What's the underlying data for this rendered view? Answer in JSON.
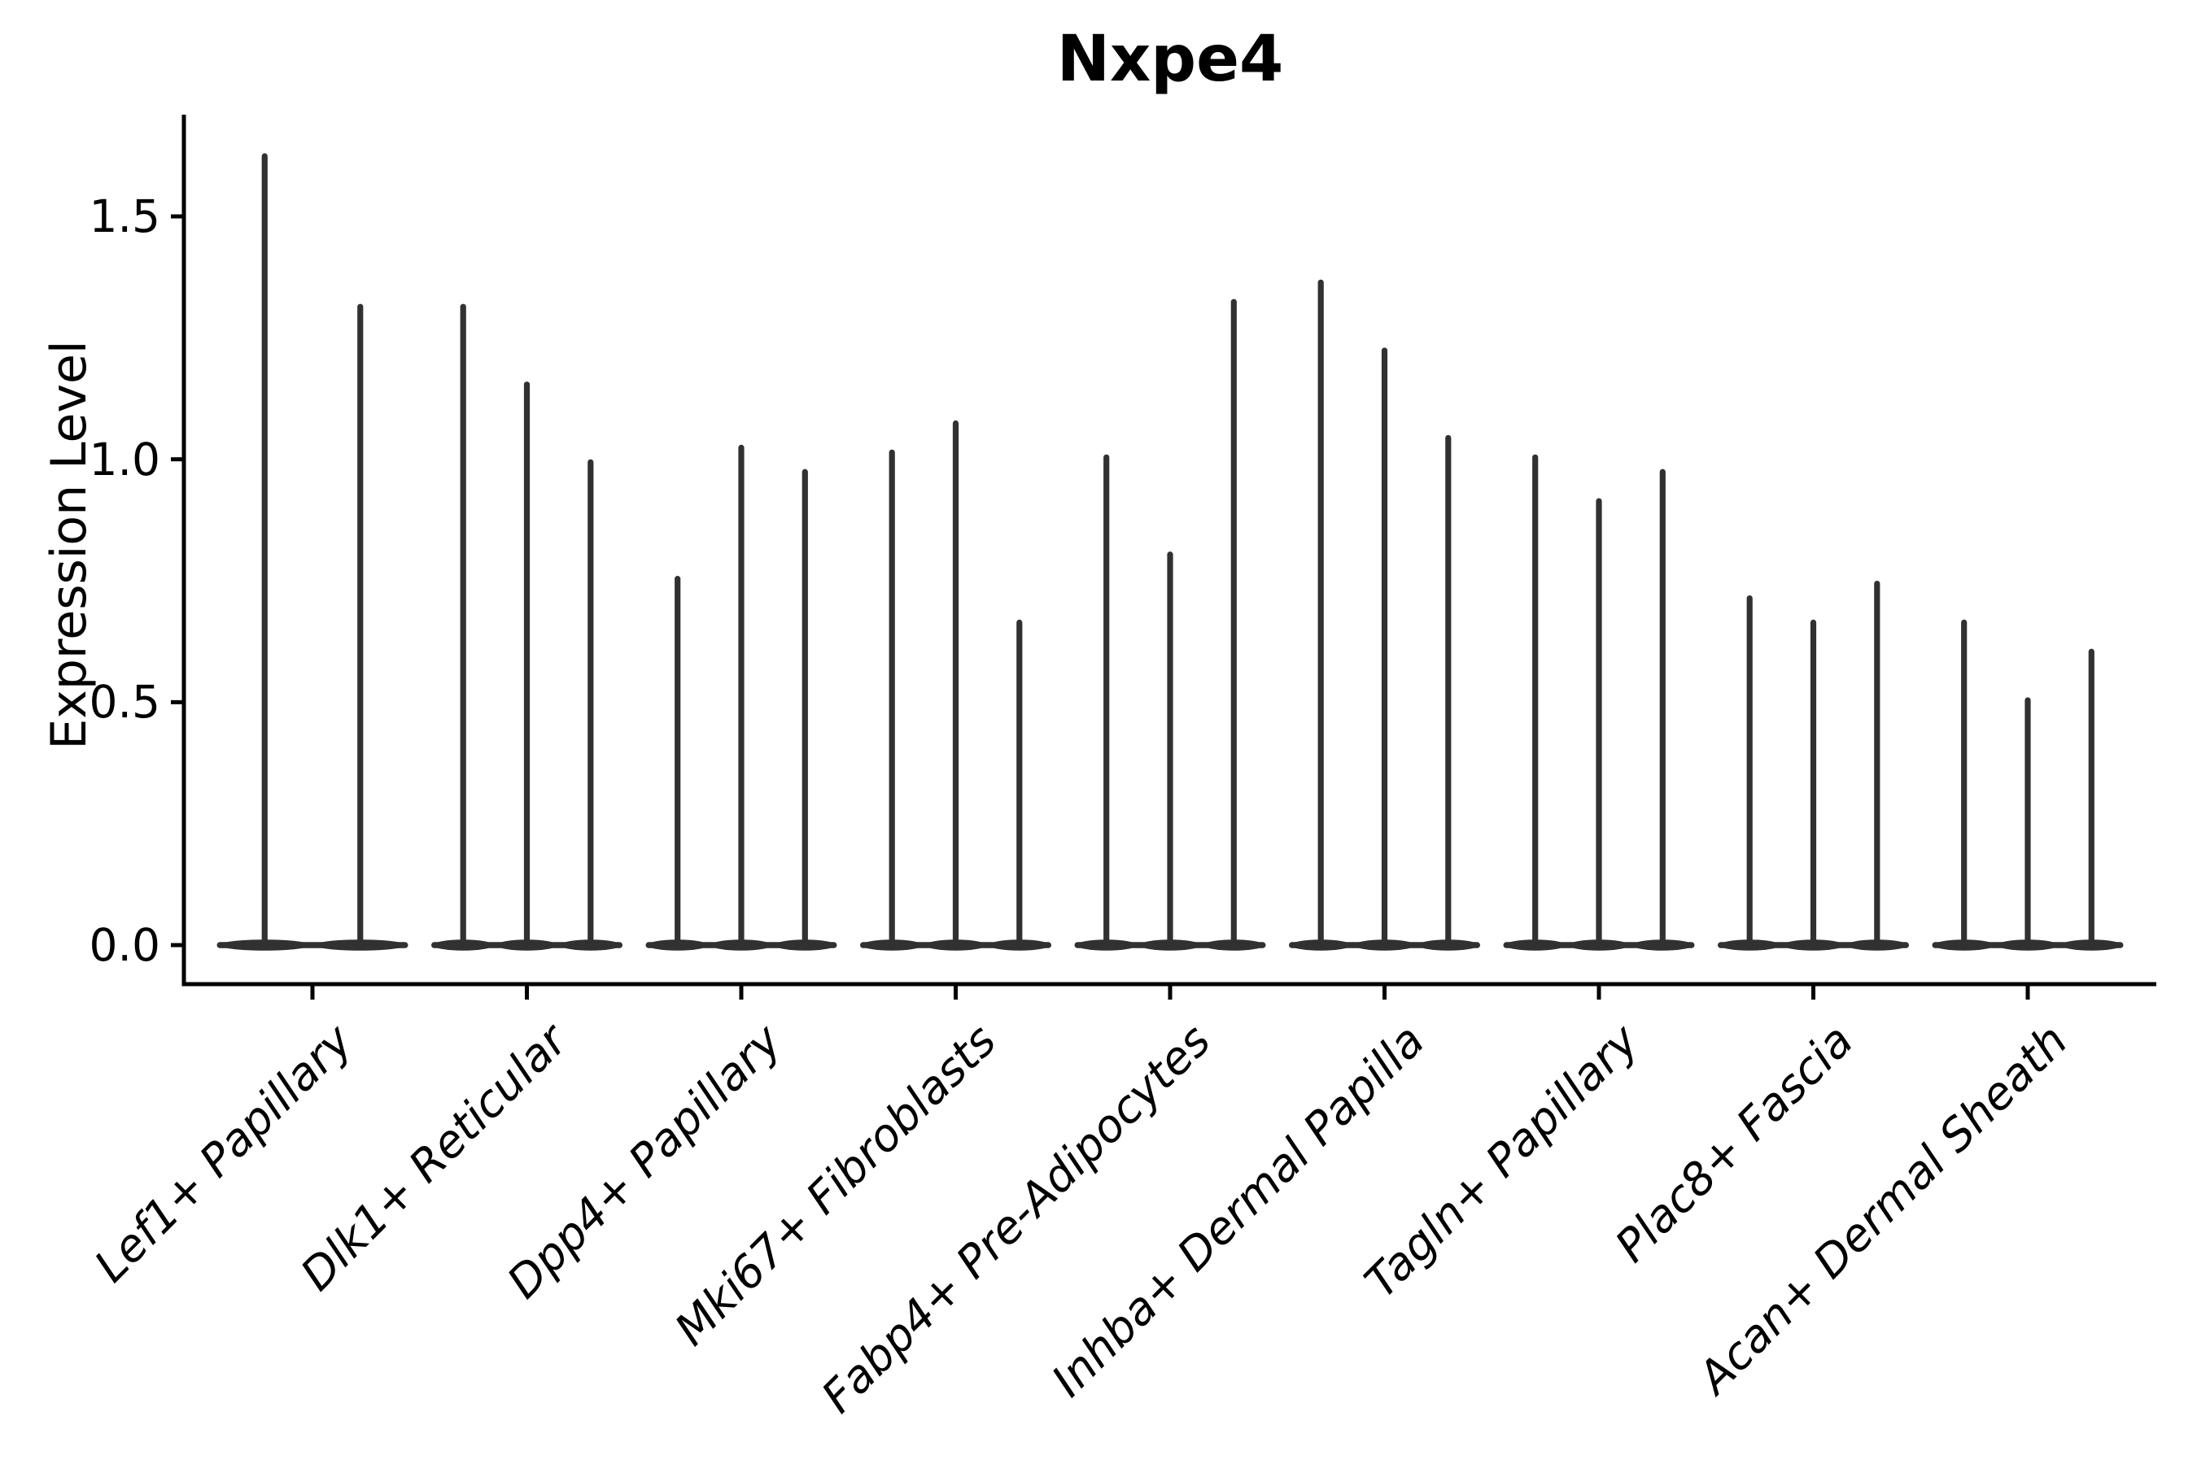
{
  "chart_data": {
    "type": "violin",
    "title": "Nxpe4",
    "ylabel": "Expression Level",
    "xlabel": "",
    "categories": [
      "Lef1+ Papillary",
      "Dlk1+ Reticular",
      "Dpp4+ Papillary",
      "Mki67+ Fibroblasts",
      "Fabp4+ Pre-Adipocytes",
      "Inhba+ Dermal Papilla",
      "Tagln+ Papillary",
      "Plac8+ Fascia",
      "Acan+ Dermal Sheath"
    ],
    "ytick_labels": [
      "0.0",
      "0.5",
      "1.0",
      "1.5"
    ],
    "yticks": [
      0.0,
      0.5,
      1.0,
      1.5
    ],
    "ylim": [
      -0.08,
      1.71
    ],
    "grid": false,
    "legend": null,
    "series": [
      {
        "category": "Lef1+ Papillary",
        "violin_max_values": [
          1.63,
          1.32
        ]
      },
      {
        "category": "Dlk1+ Reticular",
        "violin_max_values": [
          1.32,
          1.16,
          1.0
        ]
      },
      {
        "category": "Dpp4+ Papillary",
        "violin_max_values": [
          0.76,
          1.03,
          0.98
        ]
      },
      {
        "category": "Mki67+ Fibroblasts",
        "violin_max_values": [
          1.02,
          1.08,
          0.67
        ]
      },
      {
        "category": "Fabp4+ Pre-Adipocytes",
        "violin_max_values": [
          1.01,
          0.81,
          1.33
        ]
      },
      {
        "category": "Inhba+ Dermal Papilla",
        "violin_max_values": [
          1.37,
          1.23,
          1.05
        ]
      },
      {
        "category": "Tagln+ Papillary",
        "violin_max_values": [
          1.01,
          0.92,
          0.98
        ]
      },
      {
        "category": "Plac8+ Fascia",
        "violin_max_values": [
          0.72,
          0.67,
          0.75
        ]
      },
      {
        "category": "Acan+ Dermal Sheath",
        "violin_max_values": [
          0.67,
          0.51,
          0.61
        ]
      }
    ],
    "violin_baseline_value": 0.0,
    "colors": {
      "violin": "#313131",
      "axis": "#000000",
      "text": "#000000",
      "background": "#ffffff"
    }
  }
}
